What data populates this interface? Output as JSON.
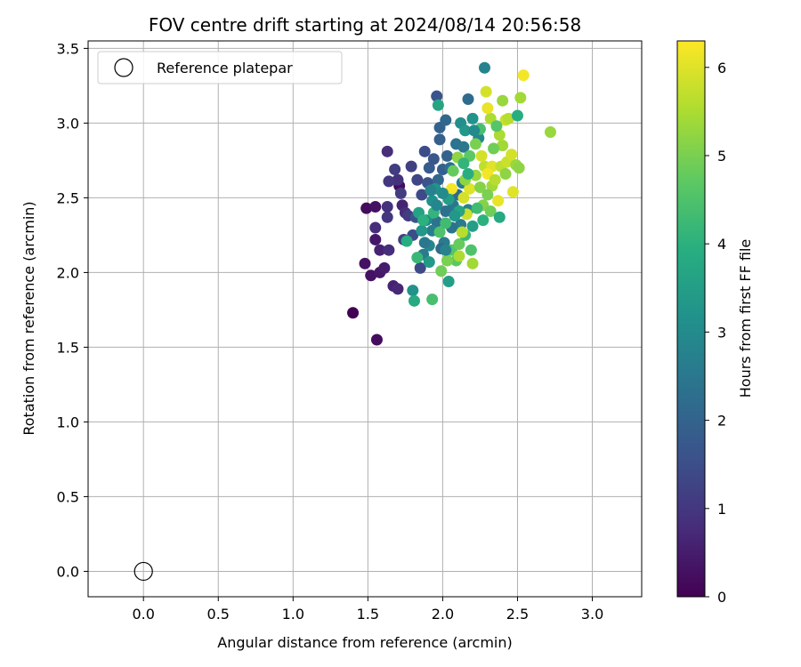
{
  "chart_data": {
    "type": "scatter",
    "title": "FOV centre drift starting at 2024/08/14 20:56:58",
    "xlabel": "Angular distance from reference (arcmin)",
    "ylabel": "Rotation from reference (arcmin)",
    "xlim": [
      -0.37,
      3.33
    ],
    "ylim": [
      -0.17,
      3.55
    ],
    "xticks": [
      "0.0",
      "0.5",
      "1.0",
      "1.5",
      "2.0",
      "2.5",
      "3.0"
    ],
    "yticks": [
      "0.0",
      "0.5",
      "1.0",
      "1.5",
      "2.0",
      "2.5",
      "3.0",
      "3.5"
    ],
    "grid": true,
    "legend": {
      "position": "top-left",
      "entries": [
        "Reference platepar"
      ]
    },
    "reference_point": {
      "x": 0.0,
      "y": 0.0
    },
    "colorbar": {
      "label": "Hours from first FF file",
      "range": [
        0,
        6.3
      ],
      "ticks": [
        "0",
        "1",
        "2",
        "3",
        "4",
        "5",
        "6"
      ],
      "colormap": "viridis"
    },
    "points": [
      [
        1.4,
        1.73,
        0.0
      ],
      [
        1.56,
        1.55,
        0.2
      ],
      [
        1.48,
        2.06,
        0.3
      ],
      [
        1.52,
        1.98,
        0.3
      ],
      [
        1.58,
        2.0,
        0.4
      ],
      [
        1.61,
        2.03,
        0.5
      ],
      [
        1.55,
        2.22,
        0.4
      ],
      [
        1.49,
        2.43,
        0.2
      ],
      [
        1.55,
        2.44,
        0.3
      ],
      [
        1.58,
        2.15,
        0.6
      ],
      [
        1.55,
        2.3,
        0.8
      ],
      [
        1.71,
        2.58,
        0.2
      ],
      [
        1.64,
        2.15,
        0.8
      ],
      [
        1.67,
        1.91,
        0.6
      ],
      [
        1.7,
        1.89,
        0.7
      ],
      [
        1.73,
        2.45,
        0.6
      ],
      [
        1.75,
        2.4,
        0.8
      ],
      [
        1.63,
        2.44,
        0.9
      ],
      [
        1.63,
        2.37,
        1.0
      ],
      [
        1.7,
        2.62,
        0.9
      ],
      [
        1.64,
        2.61,
        1.0
      ],
      [
        1.68,
        2.69,
        1.1
      ],
      [
        1.63,
        2.81,
        0.8
      ],
      [
        1.72,
        2.53,
        1.1
      ],
      [
        1.74,
        2.22,
        1.2
      ],
      [
        1.77,
        2.38,
        1.1
      ],
      [
        1.79,
        2.71,
        1.2
      ],
      [
        1.83,
        2.62,
        1.3
      ],
      [
        1.86,
        2.52,
        1.4
      ],
      [
        1.88,
        2.81,
        1.5
      ],
      [
        1.85,
        2.03,
        1.4
      ],
      [
        1.8,
        2.25,
        1.5
      ],
      [
        1.82,
        2.37,
        1.6
      ],
      [
        1.9,
        2.6,
        1.6
      ],
      [
        1.91,
        2.7,
        1.8
      ],
      [
        1.94,
        2.76,
        1.7
      ],
      [
        1.96,
        3.18,
        1.6
      ],
      [
        1.98,
        2.89,
        1.9
      ],
      [
        1.98,
        2.97,
        2.0
      ],
      [
        2.02,
        3.02,
        2.1
      ],
      [
        2.0,
        2.69,
        1.9
      ],
      [
        2.03,
        2.78,
        2.0
      ],
      [
        1.97,
        2.62,
        2.1
      ],
      [
        2.05,
        2.7,
        2.3
      ],
      [
        2.09,
        2.86,
        2.4
      ],
      [
        2.14,
        2.84,
        2.5
      ],
      [
        2.17,
        3.16,
        2.2
      ],
      [
        2.28,
        3.37,
        2.8
      ],
      [
        2.12,
        3.0,
        3.1
      ],
      [
        2.2,
        3.03,
        3.2
      ],
      [
        2.15,
        2.95,
        3.3
      ],
      [
        2.24,
        2.9,
        2.9
      ],
      [
        2.13,
        2.6,
        2.7
      ],
      [
        2.17,
        2.42,
        2.8
      ],
      [
        2.12,
        2.32,
        2.6
      ],
      [
        2.07,
        2.45,
        2.5
      ],
      [
        2.1,
        2.52,
        2.2
      ],
      [
        2.02,
        2.41,
        2.3
      ],
      [
        2.06,
        2.3,
        2.4
      ],
      [
        2.01,
        2.2,
        2.6
      ],
      [
        1.99,
        2.16,
        2.2
      ],
      [
        1.96,
        2.34,
        2.4
      ],
      [
        1.93,
        2.28,
        2.7
      ],
      [
        1.91,
        2.18,
        2.9
      ],
      [
        1.87,
        2.12,
        2.6
      ],
      [
        1.89,
        2.35,
        3.0
      ],
      [
        1.93,
        2.48,
        3.1
      ],
      [
        1.95,
        2.56,
        3.2
      ],
      [
        1.91,
        2.07,
        3.4
      ],
      [
        1.86,
        2.28,
        3.3
      ],
      [
        1.84,
        2.4,
        3.6
      ],
      [
        1.97,
        3.12,
        3.7
      ],
      [
        2.04,
        1.94,
        3.5
      ],
      [
        1.8,
        1.88,
        3.2
      ],
      [
        1.81,
        1.81,
        3.8
      ],
      [
        1.93,
        1.82,
        4.4
      ],
      [
        1.76,
        2.21,
        3.9
      ],
      [
        1.83,
        2.1,
        4.2
      ],
      [
        1.87,
        2.35,
        4.0
      ],
      [
        1.94,
        2.4,
        4.1
      ],
      [
        1.98,
        2.27,
        4.5
      ],
      [
        2.02,
        2.33,
        4.3
      ],
      [
        2.06,
        2.15,
        4.6
      ],
      [
        2.09,
        2.08,
        4.7
      ],
      [
        2.11,
        2.19,
        4.8
      ],
      [
        2.15,
        2.25,
        4.2
      ],
      [
        2.19,
        2.15,
        4.5
      ],
      [
        2.2,
        2.06,
        5.4
      ],
      [
        1.99,
        2.01,
        4.9
      ],
      [
        2.03,
        2.08,
        5.0
      ],
      [
        2.11,
        2.11,
        5.5
      ],
      [
        2.13,
        2.27,
        5.6
      ],
      [
        2.16,
        2.39,
        5.8
      ],
      [
        2.14,
        2.5,
        5.9
      ],
      [
        2.18,
        2.56,
        6.0
      ],
      [
        2.06,
        2.56,
        6.2
      ],
      [
        2.15,
        2.62,
        5.2
      ],
      [
        2.22,
        2.65,
        5.3
      ],
      [
        2.27,
        2.45,
        5.1
      ],
      [
        2.32,
        2.41,
        4.9
      ],
      [
        2.38,
        2.37,
        3.8
      ],
      [
        2.33,
        2.58,
        5.4
      ],
      [
        2.37,
        2.48,
        6.1
      ],
      [
        2.28,
        2.71,
        5.7
      ],
      [
        2.26,
        2.78,
        5.9
      ],
      [
        2.33,
        2.71,
        6.0
      ],
      [
        2.3,
        2.66,
        6.2
      ],
      [
        2.35,
        2.62,
        5.6
      ],
      [
        2.39,
        2.71,
        5.7
      ],
      [
        2.43,
        2.74,
        5.8
      ],
      [
        2.46,
        2.79,
        5.9
      ],
      [
        2.49,
        2.72,
        5.3
      ],
      [
        2.51,
        2.7,
        5.2
      ],
      [
        2.47,
        2.54,
        6.0
      ],
      [
        2.4,
        2.85,
        5.4
      ],
      [
        2.38,
        2.92,
        5.5
      ],
      [
        2.42,
        3.02,
        5.8
      ],
      [
        2.44,
        3.03,
        5.6
      ],
      [
        2.5,
        3.05,
        3.9
      ],
      [
        2.52,
        3.17,
        5.4
      ],
      [
        2.54,
        3.32,
        6.2
      ],
      [
        2.4,
        3.15,
        5.3
      ],
      [
        2.32,
        3.03,
        5.5
      ],
      [
        2.3,
        3.1,
        6.1
      ],
      [
        2.29,
        3.21,
        5.9
      ],
      [
        2.36,
        2.98,
        4.6
      ],
      [
        2.25,
        2.96,
        4.4
      ],
      [
        2.22,
        2.86,
        5.0
      ],
      [
        2.18,
        2.78,
        4.7
      ],
      [
        2.1,
        2.77,
        5.2
      ],
      [
        2.07,
        2.68,
        4.8
      ],
      [
        2.25,
        2.57,
        5.1
      ],
      [
        2.3,
        2.52,
        5.0
      ],
      [
        2.23,
        2.43,
        4.3
      ],
      [
        2.27,
        2.35,
        4.0
      ],
      [
        2.2,
        2.31,
        3.5
      ],
      [
        2.11,
        2.41,
        3.7
      ],
      [
        2.08,
        2.38,
        3.3
      ],
      [
        2.04,
        2.49,
        3.5
      ],
      [
        2.0,
        2.53,
        3.0
      ],
      [
        1.96,
        2.45,
        2.9
      ],
      [
        1.92,
        2.55,
        2.8
      ],
      [
        2.72,
        2.94,
        5.3
      ],
      [
        2.42,
        2.66,
        5.2
      ],
      [
        2.34,
        2.83,
        4.9
      ],
      [
        2.21,
        2.95,
        3.0
      ],
      [
        2.17,
        2.66,
        3.9
      ],
      [
        2.14,
        2.73,
        4.1
      ],
      [
        1.88,
        2.2,
        2.5
      ],
      [
        2.02,
        2.15,
        2.8
      ]
    ]
  }
}
